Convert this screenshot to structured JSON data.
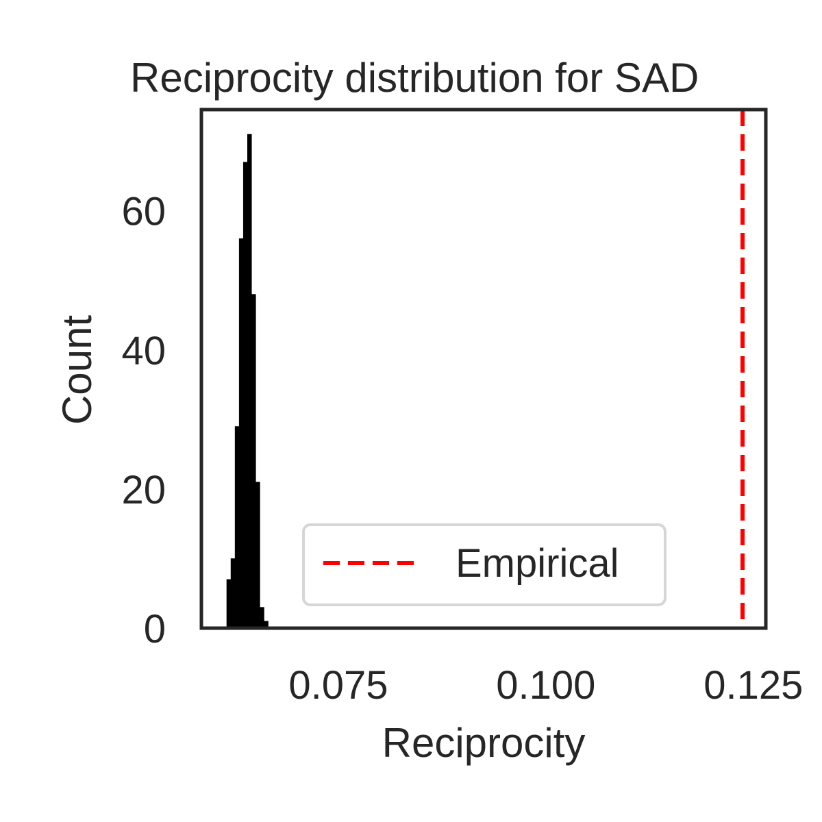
{
  "chart_data": {
    "type": "bar",
    "title": "Reciprocity distribution for SAD",
    "xlabel": "Reciprocity",
    "ylabel": "Count",
    "xlim": [
      0.0585,
      0.1265
    ],
    "ylim": [
      0,
      71
    ],
    "x_ticks": [
      {
        "value": 0.075,
        "label": "0.075"
      },
      {
        "value": 0.1,
        "label": "0.100"
      },
      {
        "value": 0.125,
        "label": "0.125"
      }
    ],
    "y_ticks": [
      {
        "value": 0,
        "label": "0"
      },
      {
        "value": 20,
        "label": "20"
      },
      {
        "value": 40,
        "label": "40"
      },
      {
        "value": 60,
        "label": "60"
      }
    ],
    "histogram": {
      "color": "#000000",
      "bins": [
        {
          "x0": 0.06155,
          "x1": 0.06205,
          "count": 7
        },
        {
          "x0": 0.06205,
          "x1": 0.06255,
          "count": 10
        },
        {
          "x0": 0.06255,
          "x1": 0.06305,
          "count": 29
        },
        {
          "x0": 0.06305,
          "x1": 0.06355,
          "count": 56
        },
        {
          "x0": 0.06355,
          "x1": 0.06405,
          "count": 67
        },
        {
          "x0": 0.06405,
          "x1": 0.06455,
          "count": 71
        },
        {
          "x0": 0.06455,
          "x1": 0.06505,
          "count": 48
        },
        {
          "x0": 0.06505,
          "x1": 0.06555,
          "count": 21
        },
        {
          "x0": 0.06555,
          "x1": 0.06605,
          "count": 3
        },
        {
          "x0": 0.06605,
          "x1": 0.06655,
          "count": 1
        }
      ]
    },
    "reference_lines": [
      {
        "name": "Empirical",
        "x": 0.1237,
        "color": "#ff0000",
        "style": "dashed"
      }
    ],
    "legend": {
      "position": "lower-right",
      "entries": [
        "Empirical"
      ]
    },
    "grid": false
  }
}
